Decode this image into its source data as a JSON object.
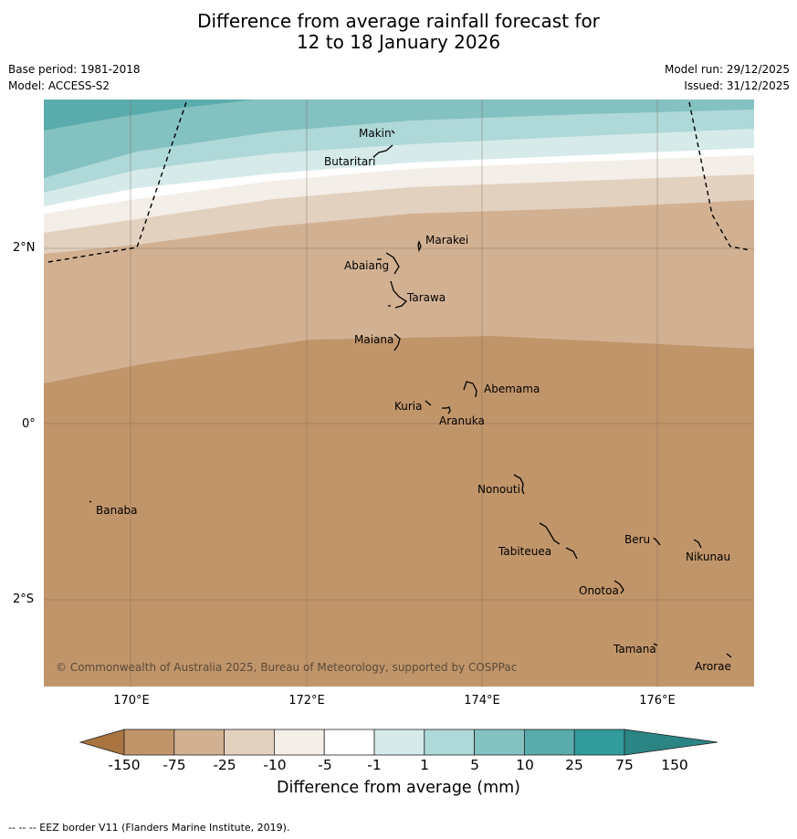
{
  "header": {
    "title_line1": "Difference from average rainfall forecast for",
    "title_line2": "12 to 18 January 2026",
    "base_period": "Base period: 1981-2018",
    "model": "Model: ACCESS-S2",
    "model_run": "Model run: 29/12/2025",
    "issued": "Issued: 31/12/2025"
  },
  "map": {
    "lat_labels": [
      "2°N",
      "0°",
      "2°S"
    ],
    "lon_labels": [
      "170°E",
      "172°E",
      "174°E",
      "176°E"
    ],
    "places": [
      "Makin",
      "Butaritari",
      "Marakei",
      "Abaiang",
      "Tarawa",
      "Maiana",
      "Abemama",
      "Kuria",
      "Aranuka",
      "Banaba",
      "Nonouti",
      "Beru",
      "Nikunau",
      "Tabiteuea",
      "Onotoa",
      "Tamana",
      "Arorae"
    ],
    "credit": "© Commonwealth of Australia 2025, Bureau of Meteorology, supported by COSPPac",
    "band_colors": [
      "#5aacac",
      "#84c1c1",
      "#afd8d8",
      "#d6eaea",
      "#ffffff",
      "#f3eee7",
      "#e3d1c0",
      "#d2b192",
      "#c1956a"
    ]
  },
  "colorbar": {
    "labels": [
      "-150",
      "-75",
      "-25",
      "-10",
      "-5",
      "-1",
      "1",
      "5",
      "10",
      "25",
      "75",
      "150"
    ],
    "colors": [
      "#a9743f",
      "#c1956a",
      "#d2b192",
      "#e3d1c0",
      "#f3eee7",
      "#ffffff",
      "#d6eaea",
      "#afd8d8",
      "#84c1c1",
      "#5aacac",
      "#329b9b",
      "#2b8585"
    ],
    "title": "Difference from average (mm)"
  },
  "footnote": "--  --  -- EEZ border V11 (Flanders Marine Institute, 2019)."
}
